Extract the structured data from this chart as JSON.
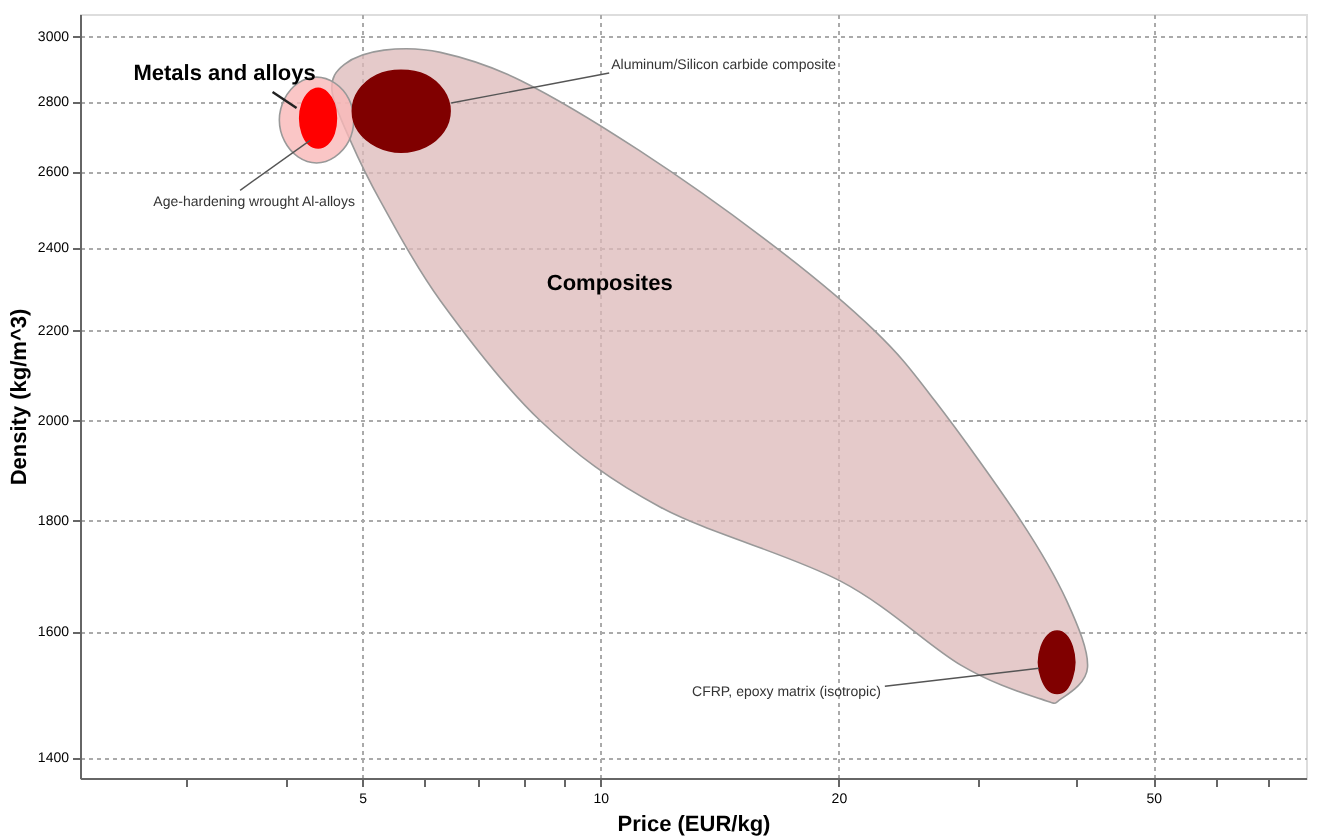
{
  "chart_data": {
    "type": "area",
    "xlabel": "Price (EUR/kg)",
    "ylabel": "Density (kg/m^3)",
    "log": "xy",
    "grid": true,
    "xlim": [
      2.2,
      78
    ],
    "ylim": [
      1370,
      3070
    ],
    "xticks": [
      {
        "value": 3,
        "label": null
      },
      {
        "value": 4,
        "label": null
      },
      5,
      {
        "value": 6,
        "label": null
      },
      {
        "value": 7,
        "label": null
      },
      {
        "value": 8,
        "label": null
      },
      {
        "value": 9,
        "label": null
      },
      10,
      20,
      {
        "value": 30,
        "label": null
      },
      {
        "value": 40,
        "label": null
      },
      50,
      {
        "value": 60,
        "label": null
      },
      {
        "value": 70,
        "label": null
      }
    ],
    "yticks": [
      1400,
      1600,
      1800,
      2000,
      2200,
      2400,
      2600,
      2800,
      3000
    ],
    "series": [
      {
        "name": "Composites",
        "color": "#dcb8b8",
        "x": [
          4.58,
          4.75,
          5.33,
          6.28,
          7.93,
          11.2,
          16.6,
          22.2,
          26.5,
          34.0,
          38.9,
          41.3,
          38.2,
          36.1,
          28.6,
          20.1,
          11.9,
          8.4,
          6.28,
          5.27,
          4.83
        ],
        "values": [
          2832,
          2911,
          2955,
          2948,
          2862,
          2658,
          2402,
          2198,
          2040,
          1798,
          1651,
          1540,
          1489,
          1489,
          1543,
          1687,
          1824,
          1998,
          2268,
          2521,
          2687
        ]
      },
      {
        "name": "Metals and alloys",
        "color": "#f9b8b8",
        "x": [
          4.88,
          4.81,
          4.62,
          4.38,
          4.15,
          3.99,
          3.93,
          3.99,
          4.15,
          4.38,
          4.62,
          4.81
        ],
        "values": [
          2745,
          2807,
          2854,
          2872,
          2854,
          2807,
          2745,
          2684,
          2640,
          2623,
          2640,
          2684
        ]
      },
      {
        "name": "Age-hardening wrought Al-alloys",
        "color": "#ff0000",
        "x": [
          4.64,
          4.61,
          4.52,
          4.4,
          4.28,
          4.2,
          4.17,
          4.2,
          4.28,
          4.4,
          4.52,
          4.61
        ],
        "values": [
          2750,
          2793,
          2825,
          2838,
          2825,
          2793,
          2750,
          2707,
          2676,
          2665,
          2676,
          2707
        ]
      },
      {
        "name": "Aluminum/Silicon carbide composite",
        "color": "#800000",
        "x": [
          6.46,
          6.34,
          6.02,
          5.6,
          5.22,
          4.95,
          4.86,
          4.95,
          5.22,
          5.6,
          6.02,
          6.34
        ],
        "values": [
          2771,
          2831,
          2878,
          2893,
          2878,
          2831,
          2771,
          2712,
          2669,
          2653,
          2669,
          2712
        ]
      },
      {
        "name": "CFRP, epoxy matrix (isotropic)",
        "color": "#800000",
        "x": [
          39.8,
          39.5,
          38.8,
          37.8,
          36.8,
          36.1,
          35.8,
          36.1,
          36.8,
          37.8,
          38.8,
          39.5
        ],
        "values": [
          1548,
          1574,
          1593,
          1600,
          1593,
          1574,
          1548,
          1523,
          1504,
          1498,
          1504,
          1523
        ]
      }
    ]
  }
}
